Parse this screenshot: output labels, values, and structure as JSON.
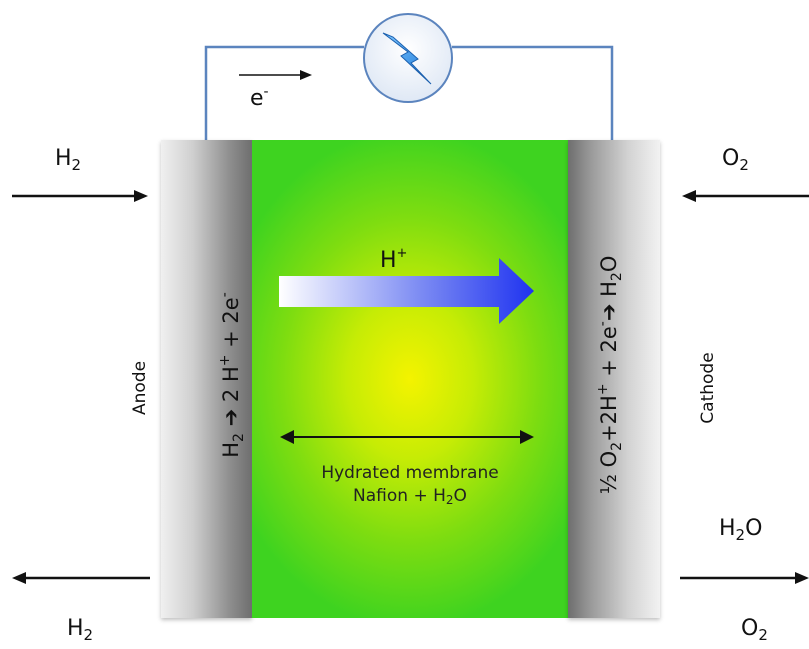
{
  "circuit": {
    "electron_label": "e",
    "electron_charge": "-",
    "load_icon": "lightning-bolt-icon"
  },
  "anode": {
    "label": "Anode",
    "reaction": {
      "h": "H",
      "sub1": "2",
      "arrow": "➔",
      "mid": " 2 H",
      "sup1": "+",
      "tail": " + 2e",
      "sup2": "-"
    }
  },
  "cathode": {
    "label": "Cathode",
    "reaction": {
      "lead": "½ O",
      "sub1": "2",
      "mid": "+2H",
      "sup1": "+",
      "tail": " + 2e",
      "sup2": "-",
      "arrow": "➔",
      "end": " H",
      "sub2": "2",
      "end2": "O"
    }
  },
  "membrane": {
    "line1": "Hydrated membrane",
    "line2_prefix": "Nafion + H",
    "line2_sub": "2",
    "line2_suffix": "O"
  },
  "proton": {
    "label": "H",
    "charge": "+"
  },
  "flows": {
    "h2_in": {
      "base": "H",
      "sub": "2"
    },
    "h2_out": {
      "base": "H",
      "sub": "2"
    },
    "o2_in": {
      "base": "O",
      "sub": "2"
    },
    "o2_out": {
      "base": "O",
      "sub": "2"
    },
    "h2o_out": {
      "base": "H",
      "sub": "2",
      "suffix": "O"
    }
  },
  "colors": {
    "wire": "#5b84be",
    "membrane_center": "#f4f300",
    "membrane_edge": "#3ed320",
    "proton_arrow_start": "#ffffff",
    "proton_arrow_end": "#1f33f0",
    "flow_arrow": "#111111"
  }
}
